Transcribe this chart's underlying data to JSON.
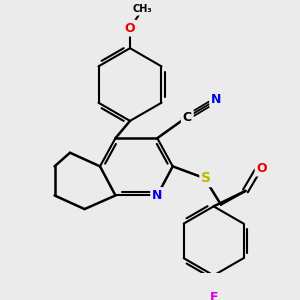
{
  "background_color": "#ebebeb",
  "bond_color": "#000000",
  "atom_colors": {
    "N": "#0000ee",
    "O": "#ee0000",
    "S": "#bbbb00",
    "F": "#dd00dd",
    "C": "#000000"
  },
  "figsize": [
    3.0,
    3.0
  ],
  "dpi": 100
}
